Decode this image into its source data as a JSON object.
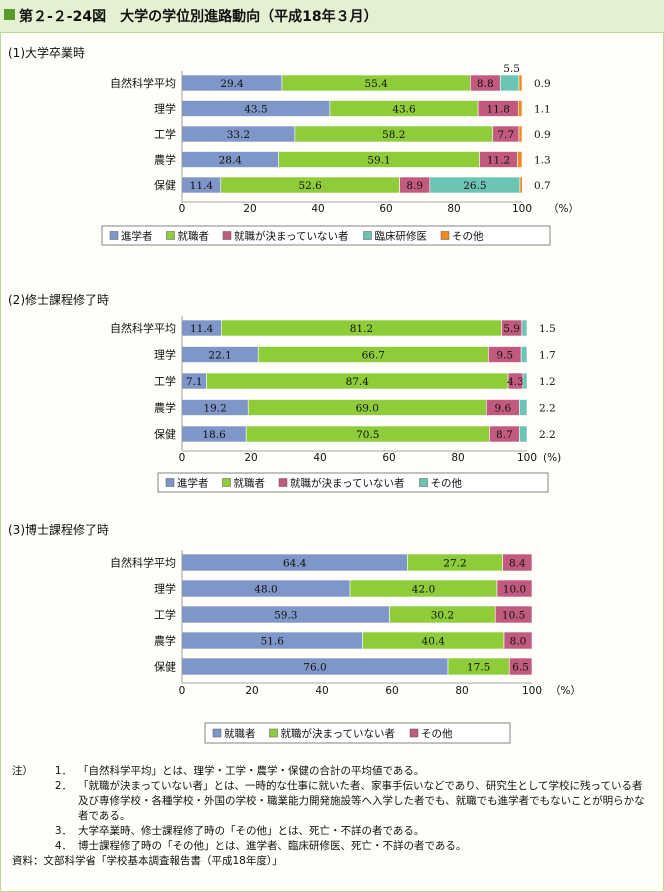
{
  "figure_title": "第２-２-24図　大学の学位別進路動向（平成18年３月）",
  "chart_data": [
    {
      "type": "bar",
      "orientation": "horizontal-stacked",
      "title": "(1)大学卒業時",
      "categories": [
        "自然科学平均",
        "理学",
        "工学",
        "農学",
        "保健"
      ],
      "series": [
        {
          "name": "進学者",
          "color": "#7f96c8",
          "values": [
            29.4,
            43.5,
            33.2,
            28.4,
            11.4
          ]
        },
        {
          "name": "就職者",
          "color": "#8fcc3a",
          "values": [
            55.4,
            43.6,
            58.2,
            59.1,
            52.6
          ]
        },
        {
          "name": "就職が決まっていない者",
          "color": "#c25a80",
          "values": [
            8.8,
            11.8,
            7.7,
            11.2,
            8.9
          ]
        },
        {
          "name": "臨床研修医",
          "color": "#6cc4b4",
          "values": [
            5.5,
            0,
            0,
            0,
            26.5
          ]
        },
        {
          "name": "その他",
          "color": "#f08a1c",
          "values": [
            0.9,
            1.1,
            0.9,
            1.3,
            0.7
          ]
        }
      ],
      "data_labels": [
        [
          "29.4",
          "55.4",
          "8.8",
          "5.5",
          "0.9"
        ],
        [
          "43.5",
          "43.6",
          "11.8",
          "",
          "1.1"
        ],
        [
          "33.2",
          "58.2",
          "7.7",
          "",
          "0.9"
        ],
        [
          "28.4",
          "59.1",
          "11.2",
          "",
          "1.3"
        ],
        [
          "11.4",
          "52.6",
          "8.9",
          "26.5",
          "0.7"
        ]
      ],
      "xlim": [
        0,
        100
      ],
      "xticks": [
        "0",
        "20",
        "40",
        "60",
        "80",
        "100"
      ],
      "unit": "（%）",
      "legend": [
        "進学者",
        "就職者",
        "就職が決まっていない者",
        "臨床研修医",
        "その他"
      ]
    },
    {
      "type": "bar",
      "orientation": "horizontal-stacked",
      "title": "(2)修士課程修了時",
      "categories": [
        "自然科学平均",
        "理学",
        "工学",
        "農学",
        "保健"
      ],
      "series": [
        {
          "name": "進学者",
          "color": "#7f96c8",
          "values": [
            11.4,
            22.1,
            7.1,
            19.2,
            18.6
          ]
        },
        {
          "name": "就職者",
          "color": "#8fcc3a",
          "values": [
            81.2,
            66.7,
            87.4,
            69.0,
            70.5
          ]
        },
        {
          "name": "就職が決まっていない者",
          "color": "#c25a80",
          "values": [
            5.9,
            9.5,
            4.3,
            9.6,
            8.7
          ]
        },
        {
          "name": "その他",
          "color": "#6cc4b4",
          "values": [
            1.5,
            1.7,
            1.2,
            2.2,
            2.2
          ]
        }
      ],
      "data_labels": [
        [
          "11.4",
          "81.2",
          "5.9",
          "1.5"
        ],
        [
          "22.1",
          "66.7",
          "9.5",
          "1.7"
        ],
        [
          "7.1",
          "87.4",
          "4.3",
          "1.2"
        ],
        [
          "19.2",
          "69.0",
          "9.6",
          "2.2"
        ],
        [
          "18.6",
          "70.5",
          "8.7",
          "2.2"
        ]
      ],
      "xlim": [
        0,
        100
      ],
      "xticks": [
        "0",
        "20",
        "40",
        "60",
        "80",
        "100"
      ],
      "unit": "(%)",
      "legend": [
        "進学者",
        "就職者",
        "就職が決まっていない者",
        "その他"
      ]
    },
    {
      "type": "bar",
      "orientation": "horizontal-stacked",
      "title": "(3)博士課程修了時",
      "categories": [
        "自然科学平均",
        "理学",
        "工学",
        "農学",
        "保健"
      ],
      "series": [
        {
          "name": "就職者",
          "color": "#7f96c8",
          "values": [
            64.4,
            48.0,
            59.3,
            51.6,
            76.0
          ]
        },
        {
          "name": "就職が決まっていない者",
          "color": "#8fcc3a",
          "values": [
            27.2,
            42.0,
            30.2,
            40.4,
            17.5
          ]
        },
        {
          "name": "その他",
          "color": "#c25a80",
          "values": [
            8.4,
            10.0,
            10.5,
            8.0,
            6.5
          ]
        }
      ],
      "data_labels": [
        [
          "64.4",
          "27.2",
          "8.4"
        ],
        [
          "48.0",
          "42.0",
          "10.0"
        ],
        [
          "59.3",
          "30.2",
          "10.5"
        ],
        [
          "51.6",
          "40.4",
          "8.0"
        ],
        [
          "76.0",
          "17.5",
          "6.5"
        ]
      ],
      "xlim": [
        0,
        100
      ],
      "xticks": [
        "0",
        "20",
        "40",
        "60",
        "80",
        "100"
      ],
      "unit": "（%）",
      "legend": [
        "就職者",
        "就職が決まっていない者",
        "その他"
      ]
    }
  ],
  "notes": {
    "head": "注）",
    "items": [
      {
        "num": "1．",
        "text": "「自然科学平均」とは、理学・工学・農学・保健の合計の平均値である。"
      },
      {
        "num": "2．",
        "text": "「就職が決まっていない者」とは、一時的な仕事に就いた者、家事手伝いなどであり、研究生として学校に残っている者及び専修学校・各種学校・外国の学校・職業能力開発施設等へ入学した者でも、就職でも進学者でもないことが明らかな者である。"
      },
      {
        "num": "3．",
        "text": "大学卒業時、修士課程修了時の「その他」とは、死亡・不詳の者である。"
      },
      {
        "num": "4．",
        "text": "博士課程修了時の「その他」とは、進学者、臨床研修医、死亡・不詳の者である。"
      }
    ],
    "source": "資料：文部科学省「学校基本調査報告書（平成18年度）」"
  }
}
